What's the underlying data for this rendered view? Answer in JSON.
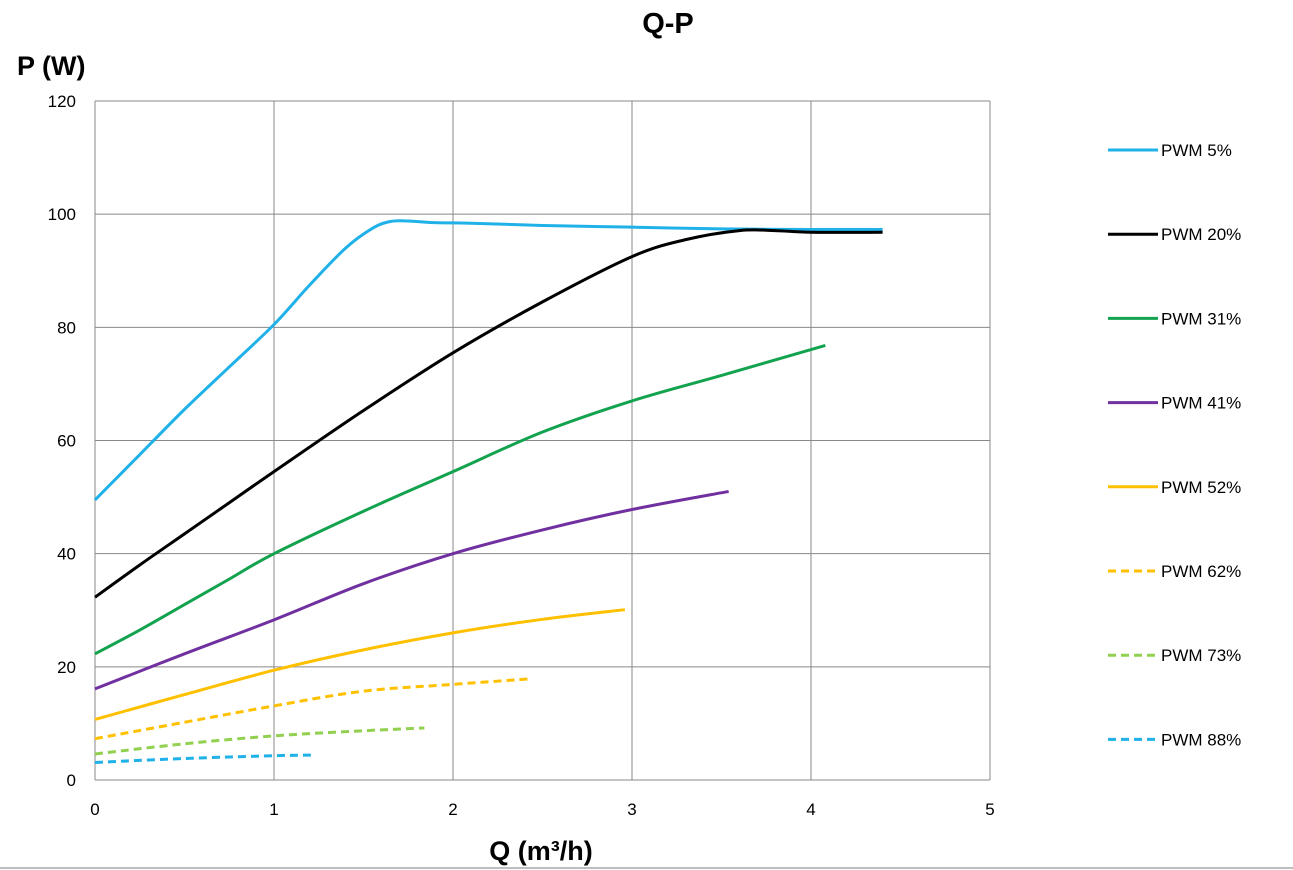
{
  "chart_data": {
    "type": "line",
    "title": "Q-P",
    "xlabel": "Q (m³/h)",
    "ylabel": "P (W)",
    "xlim": [
      0,
      5
    ],
    "ylim": [
      0,
      120
    ],
    "xticks": [
      0,
      1,
      2,
      3,
      4,
      5
    ],
    "yticks": [
      0,
      20,
      40,
      60,
      80,
      100,
      120
    ],
    "grid": true,
    "legend_position": "right",
    "series": [
      {
        "name": "PWM 5%",
        "color": "#1FB1E8",
        "dash": "solid",
        "x": [
          0,
          0.25,
          0.5,
          0.75,
          1.0,
          1.2,
          1.4,
          1.55,
          1.65,
          1.75,
          1.9,
          2.1,
          2.5,
          3.0,
          3.5,
          4.0,
          4.4
        ],
        "y": [
          49.5,
          57.5,
          65.5,
          73,
          80.5,
          87.5,
          94,
          97.5,
          98.7,
          98.8,
          98.5,
          98.4,
          98,
          97.7,
          97.4,
          97.3,
          97.3
        ]
      },
      {
        "name": "PWM 20%",
        "color": "#000000",
        "dash": "solid",
        "x": [
          0,
          0.25,
          0.5,
          0.75,
          1.0,
          1.5,
          2.0,
          2.5,
          3.0,
          3.3,
          3.6,
          3.8,
          4.0,
          4.4
        ],
        "y": [
          32.3,
          38,
          43.5,
          49,
          54.5,
          65.3,
          75.5,
          84.5,
          92.5,
          95.5,
          97.1,
          97.1,
          96.8,
          96.8
        ]
      },
      {
        "name": "PWM 31%",
        "color": "#13A34F",
        "dash": "solid",
        "x": [
          0,
          0.25,
          0.5,
          0.75,
          1.0,
          1.5,
          2.0,
          2.5,
          3.0,
          3.5,
          4.08
        ],
        "y": [
          22.3,
          26.5,
          31,
          35.5,
          40,
          47.5,
          54.5,
          61.5,
          67,
          71.5,
          76.8
        ]
      },
      {
        "name": "PWM 41%",
        "color": "#7030A0",
        "dash": "solid",
        "x": [
          0,
          0.5,
          1.0,
          1.5,
          2.0,
          2.5,
          3.0,
          3.54
        ],
        "y": [
          16.1,
          22.3,
          28.3,
          34.7,
          40,
          44.2,
          47.8,
          51
        ]
      },
      {
        "name": "PWM 52%",
        "color": "#FFC000",
        "dash": "solid",
        "x": [
          0,
          0.5,
          1.0,
          1.5,
          2.0,
          2.5,
          2.96
        ],
        "y": [
          10.7,
          15.1,
          19.4,
          23,
          26,
          28.4,
          30.1
        ]
      },
      {
        "name": "PWM 62%",
        "color": "#FFC000",
        "dash": "dashed",
        "x": [
          0,
          0.5,
          1.0,
          1.5,
          2.0,
          2.44
        ],
        "y": [
          7.3,
          10.2,
          13.1,
          15.7,
          16.9,
          17.9
        ]
      },
      {
        "name": "PWM 73%",
        "color": "#92D050",
        "dash": "dashed",
        "x": [
          0,
          0.5,
          1.0,
          1.5,
          1.84
        ],
        "y": [
          4.6,
          6.4,
          7.8,
          8.7,
          9.2
        ]
      },
      {
        "name": "PWM 88%",
        "color": "#1FB1E8",
        "dash": "dashed",
        "x": [
          0,
          0.5,
          1.0,
          1.22
        ],
        "y": [
          3.1,
          3.8,
          4.3,
          4.4
        ]
      }
    ]
  }
}
